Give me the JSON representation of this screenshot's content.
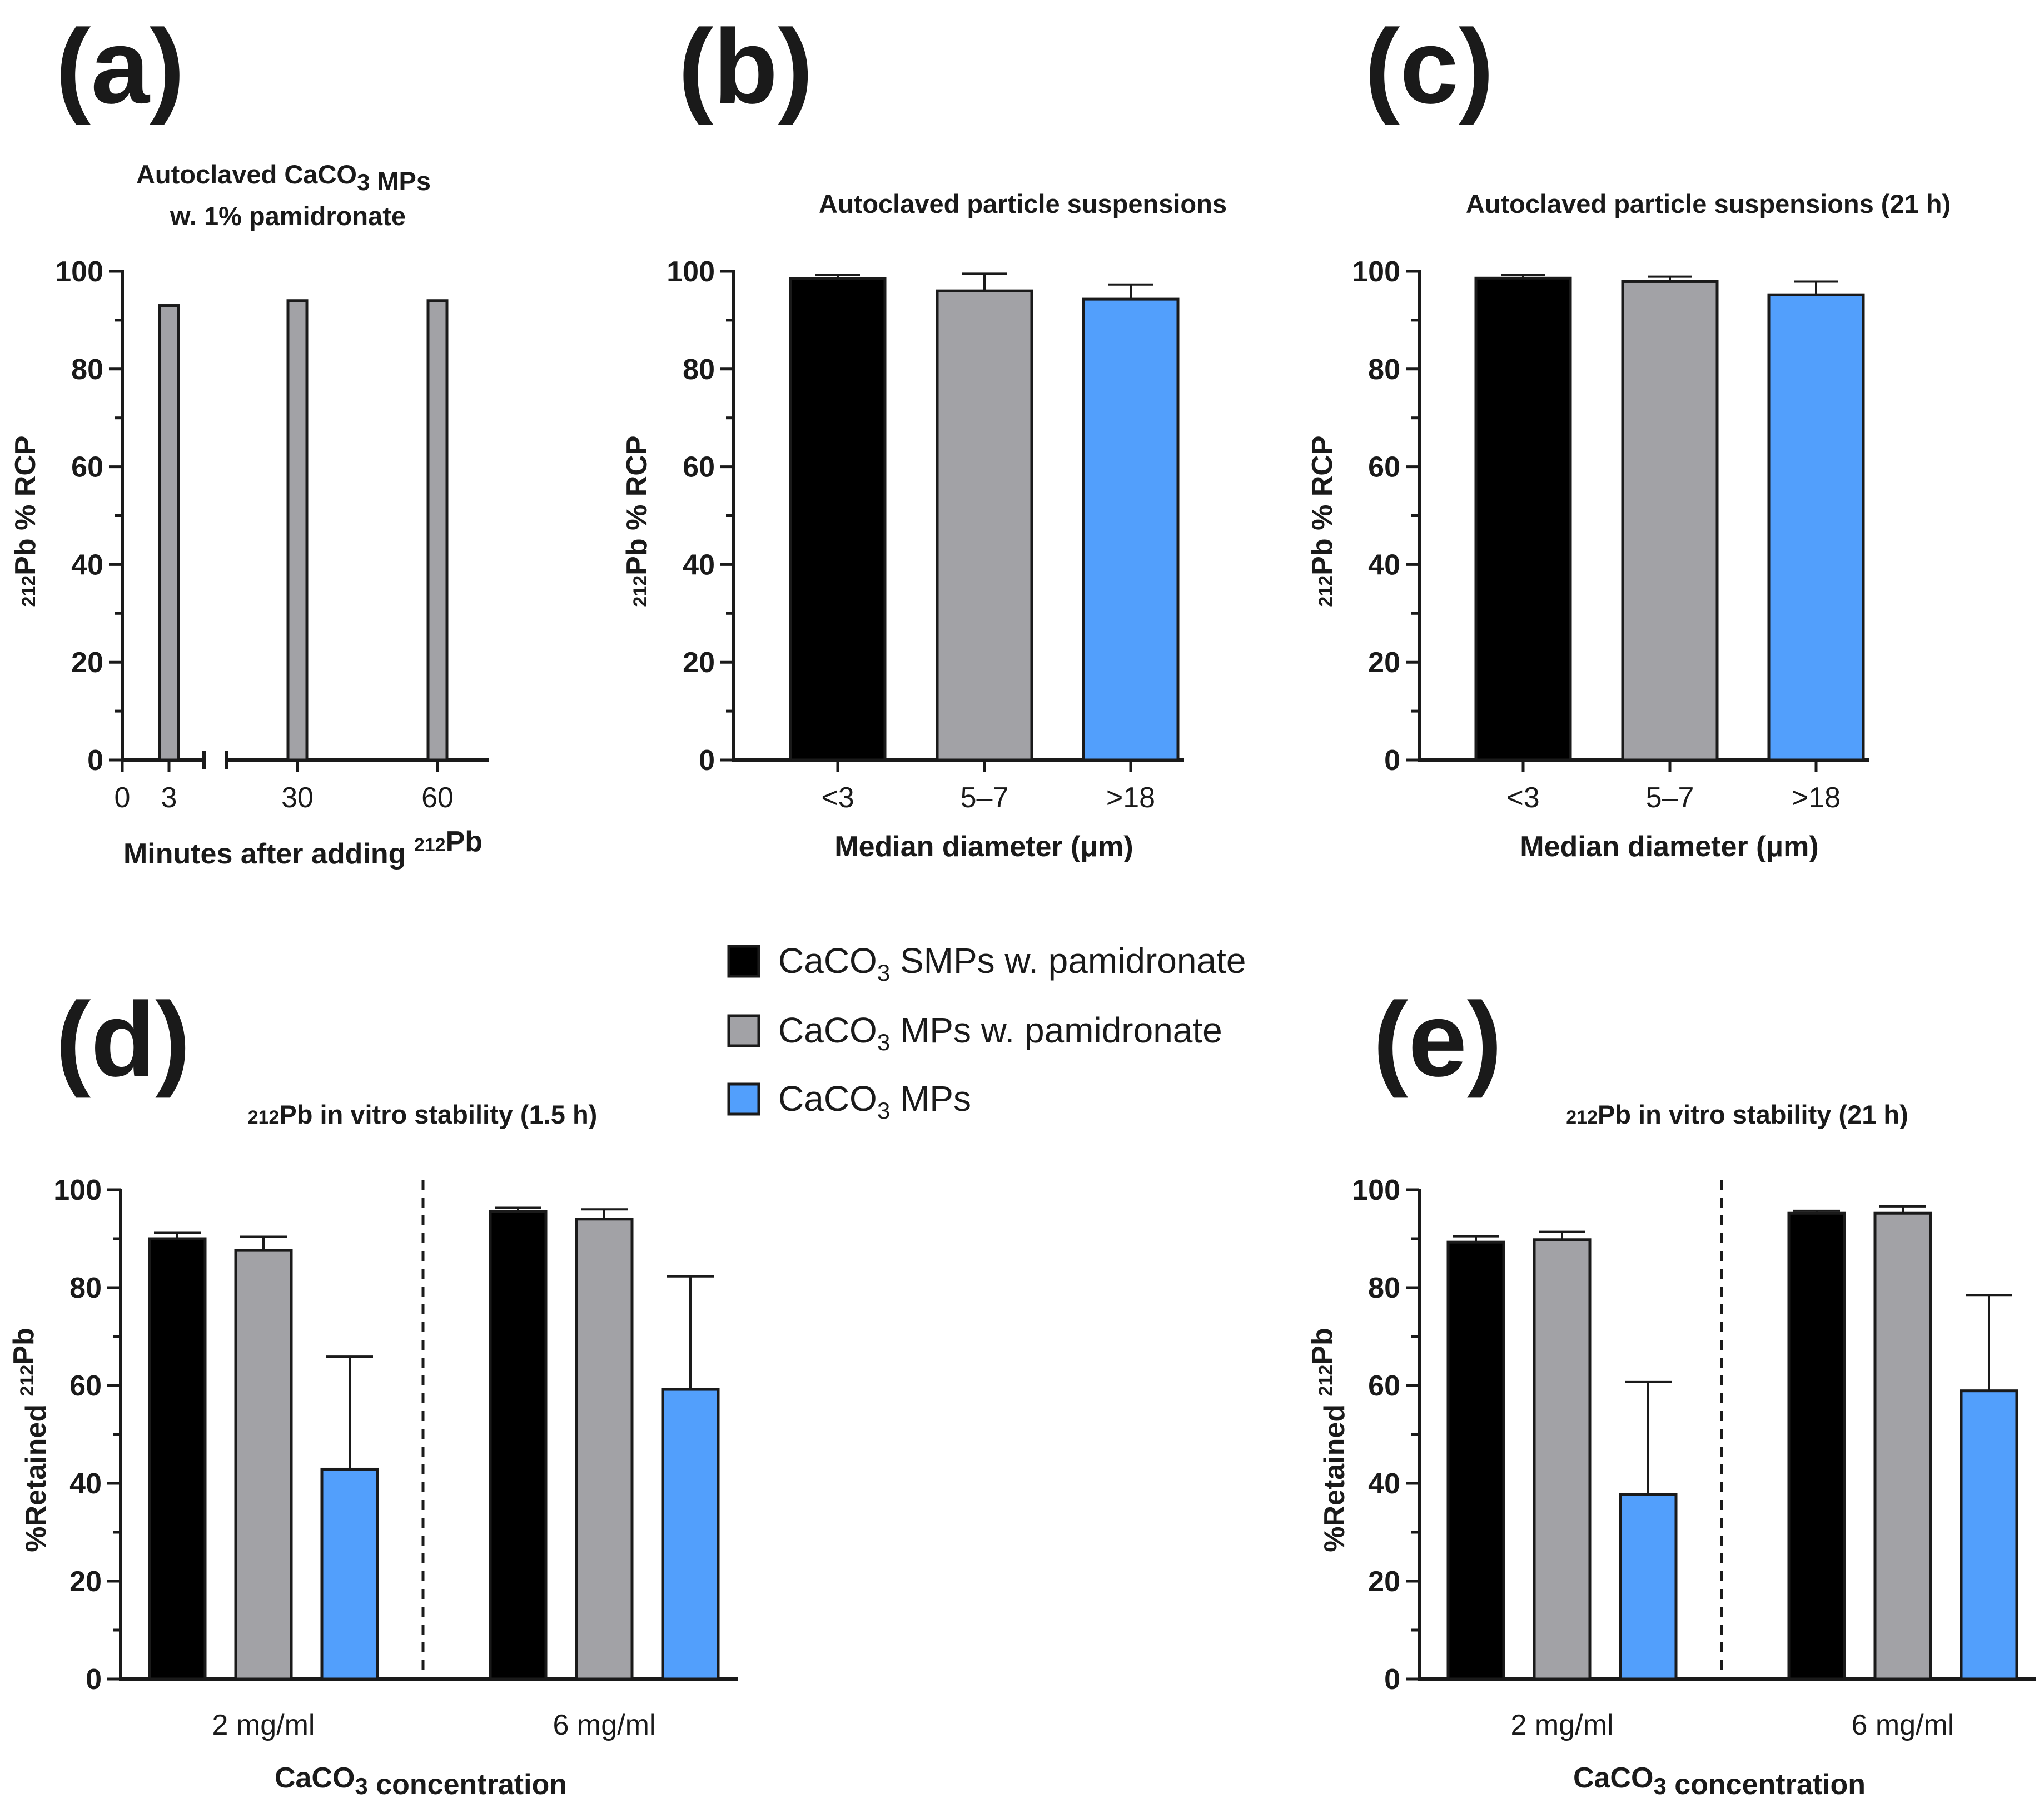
{
  "colors": {
    "smp_pam": "#000000",
    "mp_pam": "#a2a2a6",
    "mp": "#529ffc",
    "axis": "#1a1a1a"
  },
  "legend": [
    {
      "parts": [
        "CaCO",
        "3",
        " SMPs w. pamidronate"
      ],
      "color_key": "smp_pam"
    },
    {
      "parts": [
        "CaCO",
        "3",
        " MPs w. pamidronate"
      ],
      "color_key": "mp_pam"
    },
    {
      "parts": [
        "CaCO",
        "3",
        " MPs"
      ],
      "color_key": "mp"
    }
  ],
  "chart_data": [
    {
      "panel": "(a)",
      "type": "bar",
      "title_lines": [
        "Autoclaved CaCO|3| MPs",
        "w. 1% pamidronate"
      ],
      "ylabel": "212Pb % RCP",
      "xlabel": "Minutes after adding 212Pb",
      "ylim": [
        0,
        100
      ],
      "yticks": [
        0,
        20,
        40,
        60,
        80,
        100
      ],
      "x_ticks": [
        0,
        3,
        30,
        60
      ],
      "axis_break_between": [
        3,
        30
      ],
      "x": [
        3,
        30,
        60
      ],
      "values": [
        93,
        94,
        94
      ],
      "series_color_key": "mp_pam"
    },
    {
      "panel": "(b)",
      "type": "bar",
      "title_lines": [
        "Autoclaved particle suspensions"
      ],
      "ylabel": "212Pb % RCP",
      "xlabel": "Median diameter (μm)",
      "ylim": [
        0,
        100
      ],
      "yticks": [
        0,
        20,
        40,
        60,
        80,
        100
      ],
      "categories": [
        "<3",
        "5–7",
        ">18"
      ],
      "values": [
        98.5,
        96,
        94.3
      ],
      "errors": [
        0.8,
        3.5,
        3
      ],
      "color_keys": [
        "smp_pam",
        "mp_pam",
        "mp"
      ]
    },
    {
      "panel": "(c)",
      "type": "bar",
      "title_lines": [
        "Autoclaved particle suspensions (21 h)"
      ],
      "ylabel": "212Pb % RCP",
      "xlabel": "Median diameter (μm)",
      "ylim": [
        0,
        100
      ],
      "yticks": [
        0,
        20,
        40,
        60,
        80,
        100
      ],
      "categories": [
        "<3",
        "5–7",
        ">18"
      ],
      "values": [
        98.6,
        97.9,
        95.2
      ],
      "errors": [
        0.6,
        1,
        2.7
      ],
      "color_keys": [
        "smp_pam",
        "mp_pam",
        "mp"
      ]
    },
    {
      "panel": "(d)",
      "type": "bar",
      "title_lines": [
        "212Pb in vitro stability (1.5 h)"
      ],
      "ylabel": "%Retained 212Pb",
      "xlabel": "CaCO3 concentration",
      "ylim": [
        0,
        100
      ],
      "yticks": [
        0,
        20,
        40,
        60,
        80,
        100
      ],
      "categories": [
        "2 mg/ml",
        "6 mg/ml"
      ],
      "series": [
        {
          "name": "CaCO3 SMPs w. pamidronate",
          "color_key": "smp_pam",
          "values": [
            90,
            95.6
          ],
          "errors": [
            1.2,
            0.7
          ]
        },
        {
          "name": "CaCO3 MPs w. pamidronate",
          "color_key": "mp_pam",
          "values": [
            87.6,
            94
          ],
          "errors": [
            2.8,
            2
          ]
        },
        {
          "name": "CaCO3 MPs",
          "color_key": "mp",
          "values": [
            42.9,
            59.2
          ],
          "errors": [
            23,
            23.1
          ]
        }
      ]
    },
    {
      "panel": "(e)",
      "type": "bar",
      "title_lines": [
        "212Pb in vitro stability (21 h)"
      ],
      "ylabel": "%Retained 212Pb",
      "xlabel": "CaCO3 concentration",
      "ylim": [
        0,
        100
      ],
      "yticks": [
        0,
        20,
        40,
        60,
        80,
        100
      ],
      "categories": [
        "2 mg/ml",
        "6 mg/ml"
      ],
      "series": [
        {
          "name": "CaCO3 SMPs w. pamidronate",
          "color_key": "smp_pam",
          "values": [
            89.3,
            95.2
          ],
          "errors": [
            1.2,
            0.5
          ]
        },
        {
          "name": "CaCO3 MPs w. pamidronate",
          "color_key": "mp_pam",
          "values": [
            89.8,
            95.2
          ],
          "errors": [
            1.6,
            1.4
          ]
        },
        {
          "name": "CaCO3 MPs",
          "color_key": "mp",
          "values": [
            37.7,
            58.9
          ],
          "errors": [
            23,
            19.6
          ]
        }
      ]
    }
  ]
}
